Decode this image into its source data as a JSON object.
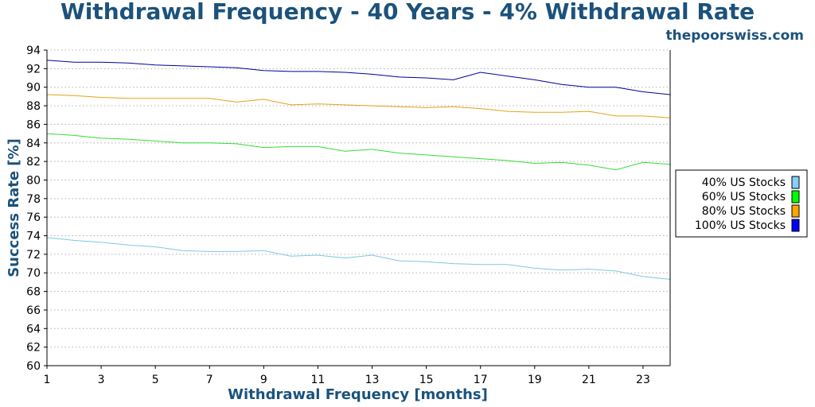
{
  "title": "Withdrawal Frequency - 40 Years - 4% Withdrawal Rate",
  "watermark": "thepoorswiss.com",
  "chart_data": {
    "type": "line",
    "xlabel": "Withdrawal Frequency [months]",
    "ylabel": "Success Rate [%]",
    "xlim": [
      1,
      24
    ],
    "ylim": [
      60,
      94
    ],
    "x_ticks": [
      1,
      3,
      5,
      7,
      9,
      11,
      13,
      15,
      17,
      19,
      21,
      23
    ],
    "y_ticks": [
      60,
      62,
      64,
      66,
      68,
      70,
      72,
      74,
      76,
      78,
      80,
      82,
      84,
      86,
      88,
      90,
      92,
      94
    ],
    "grid": "horizontal dotted",
    "legend_position": "right",
    "x": [
      1,
      2,
      3,
      4,
      5,
      6,
      7,
      8,
      9,
      10,
      11,
      12,
      13,
      14,
      15,
      16,
      17,
      18,
      19,
      20,
      21,
      22,
      23,
      24
    ],
    "series": [
      {
        "name": "40% US Stocks",
        "color": "#7ec8e3",
        "legend_color": "#87cefa",
        "values": [
          73.8,
          73.5,
          73.3,
          73.0,
          72.8,
          72.4,
          72.3,
          72.3,
          72.4,
          71.8,
          71.9,
          71.6,
          71.9,
          71.3,
          71.2,
          71.0,
          70.9,
          70.9,
          70.5,
          70.3,
          70.4,
          70.2,
          69.6,
          69.3
        ]
      },
      {
        "name": "60% US Stocks",
        "color": "#33dd33",
        "legend_color": "#00ff00",
        "values": [
          85.0,
          84.8,
          84.5,
          84.4,
          84.2,
          84.0,
          84.0,
          83.9,
          83.5,
          83.6,
          83.6,
          83.1,
          83.3,
          82.9,
          82.7,
          82.5,
          82.3,
          82.1,
          81.8,
          81.9,
          81.6,
          81.1,
          81.9,
          81.7
        ]
      },
      {
        "name": "80% US Stocks",
        "color": "#e3a21a",
        "legend_color": "#ffa500",
        "values": [
          89.2,
          89.1,
          88.9,
          88.8,
          88.8,
          88.8,
          88.8,
          88.4,
          88.7,
          88.1,
          88.2,
          88.1,
          88.0,
          87.9,
          87.8,
          87.9,
          87.7,
          87.4,
          87.3,
          87.3,
          87.4,
          86.9,
          86.9,
          86.7
        ]
      },
      {
        "name": "100% US Stocks",
        "color": "#000099",
        "legend_color": "#0000ff",
        "values": [
          92.9,
          92.7,
          92.7,
          92.6,
          92.4,
          92.3,
          92.2,
          92.1,
          91.8,
          91.7,
          91.7,
          91.6,
          91.4,
          91.1,
          91.0,
          90.8,
          91.6,
          91.2,
          90.8,
          90.3,
          90.0,
          90.0,
          89.5,
          89.2
        ]
      }
    ]
  }
}
